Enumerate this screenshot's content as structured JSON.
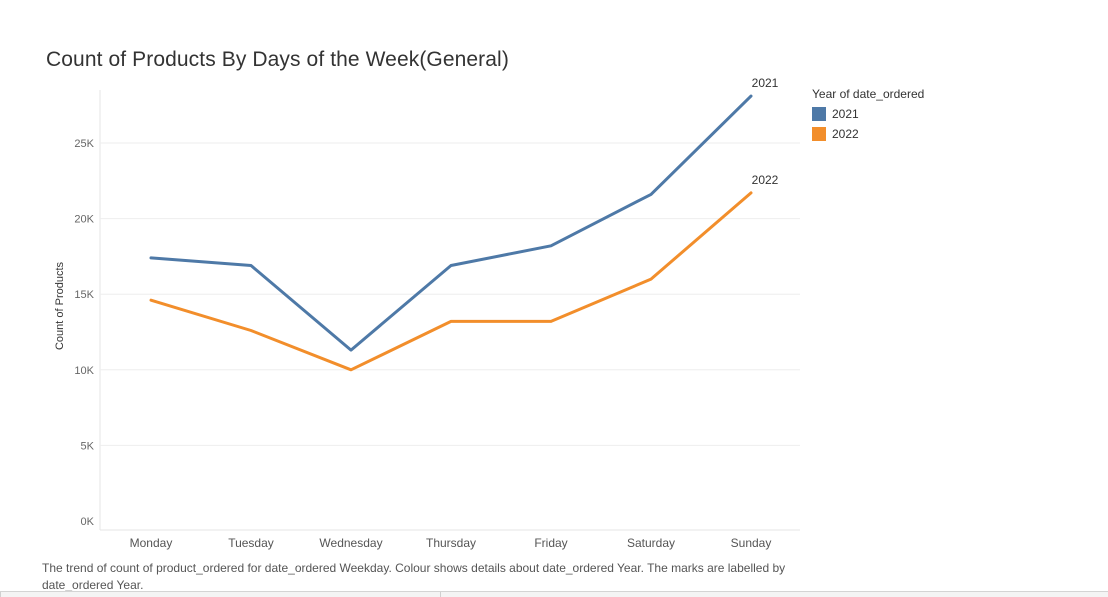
{
  "title": "Count of Products By Days of the Week(General)",
  "caption": "The trend of count of product_ordered for date_ordered Weekday.  Colour shows details about date_ordered Year.  The marks are labelled by date_ordered Year.",
  "legend": {
    "title": "Year of date_ordered",
    "items": [
      {
        "label": "2021",
        "color": "#4e79a7"
      },
      {
        "label": "2022",
        "color": "#f28e2b"
      }
    ]
  },
  "chart_data": {
    "type": "line",
    "title": "Count of Products By Days of the Week(General)",
    "xlabel": "",
    "ylabel": "Count of Products",
    "ylim": [
      0,
      29000
    ],
    "yticks": [
      0,
      5000,
      10000,
      15000,
      20000,
      25000
    ],
    "ytick_labels": [
      "0K",
      "5K",
      "10K",
      "15K",
      "20K",
      "25K"
    ],
    "categories": [
      "Monday",
      "Tuesday",
      "Wednesday",
      "Thursday",
      "Friday",
      "Saturday",
      "Sunday"
    ],
    "grid": true,
    "legend_position": "right",
    "series": [
      {
        "name": "2021",
        "color": "#4e79a7",
        "end_label": "2021",
        "values": [
          17400,
          16900,
          11300,
          16900,
          18200,
          21600,
          28100
        ]
      },
      {
        "name": "2022",
        "color": "#f28e2b",
        "end_label": "2022",
        "values": [
          14600,
          12600,
          10000,
          13200,
          13200,
          16000,
          21700
        ]
      }
    ]
  }
}
